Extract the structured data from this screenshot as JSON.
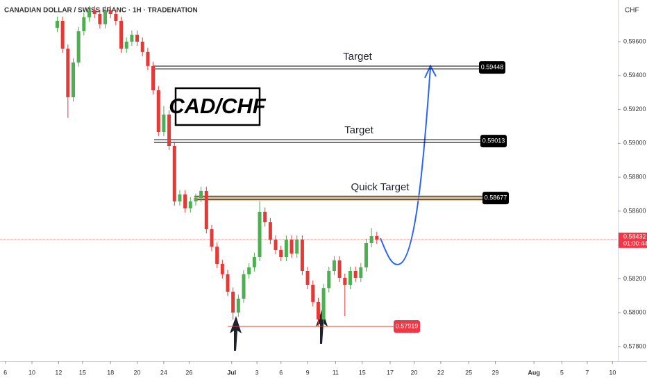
{
  "chart_data": {
    "type": "candlestick",
    "title": "CANADIAN DOLLAR / SWISS FRANC · 1H · TRADENATION",
    "currency": "CHF",
    "annotation": "CAD/CHF",
    "up_color": "#4caf50",
    "down_color": "#e53935",
    "x": [
      4.3,
      4.7,
      5.1,
      5.5,
      5.9,
      6.3,
      6.7,
      7.1,
      7.5,
      7.9,
      8.3,
      8.7,
      9.1,
      9.5,
      9.9,
      10.3,
      10.7,
      11.1,
      11.5,
      11.9,
      12.3,
      12.7,
      13.1,
      13.5,
      13.9,
      14.3,
      14.7,
      15.1,
      15.5,
      15.9,
      16.3,
      16.7,
      17.1,
      17.5,
      17.9,
      18.3,
      18.7,
      19.1,
      19.5,
      19.9,
      20.3,
      20.7,
      21.1,
      21.5,
      21.9,
      22.3,
      22.7,
      23.1,
      23.5,
      23.9,
      24.3,
      24.7,
      25.1,
      25.5,
      25.9,
      26.3,
      26.7,
      27.1,
      27.5,
      27.9,
      28.3
    ],
    "open": [
      0.59682,
      0.59723,
      0.59559,
      0.59272,
      0.59477,
      0.59662,
      0.59744,
      0.59785,
      0.59764,
      0.59703,
      0.59785,
      0.59764,
      0.59723,
      0.59559,
      0.596,
      0.59641,
      0.596,
      0.59539,
      0.59457,
      0.59313,
      0.59067,
      0.5917,
      0.58985,
      0.58657,
      0.58698,
      0.58616,
      0.58657,
      0.58678,
      0.58719,
      0.58493,
      0.5839,
      0.58288,
      0.58227,
      0.58124,
      0.58001,
      0.58083,
      0.58227,
      0.58268,
      0.58329,
      0.58596,
      0.58534,
      0.58431,
      0.5837,
      0.58329,
      0.58431,
      0.58349,
      0.58431,
      0.58247,
      0.58165,
      0.58063,
      0.5796,
      0.58145,
      0.58247,
      0.58309,
      0.58206,
      0.58165,
      0.58247,
      0.58206,
      0.58268,
      0.58411,
      0.58452
    ],
    "high": [
      0.59748,
      0.59748,
      0.59584,
      0.59502,
      0.59687,
      0.59769,
      0.5981,
      0.5981,
      0.59789,
      0.5981,
      0.5981,
      0.59789,
      0.59748,
      0.59625,
      0.59666,
      0.59666,
      0.59625,
      0.59564,
      0.59482,
      0.59338,
      0.5922,
      0.59195,
      0.5901,
      0.58723,
      0.58723,
      0.58682,
      0.58703,
      0.58744,
      0.58744,
      0.58518,
      0.58415,
      0.58313,
      0.58252,
      0.58149,
      0.58108,
      0.58252,
      0.58293,
      0.58354,
      0.5866,
      0.58621,
      0.58559,
      0.58456,
      0.58395,
      0.58456,
      0.58456,
      0.58456,
      0.58456,
      0.58272,
      0.5819,
      0.58088,
      0.5817,
      0.58272,
      0.58334,
      0.58334,
      0.58231,
      0.58272,
      0.58272,
      0.58293,
      0.58436,
      0.585,
      0.58477
    ],
    "low": [
      0.59657,
      0.59534,
      0.5915,
      0.59247,
      0.59452,
      0.59637,
      0.59719,
      0.59739,
      0.59678,
      0.59678,
      0.59739,
      0.59698,
      0.59534,
      0.59534,
      0.59575,
      0.59575,
      0.59514,
      0.59432,
      0.59288,
      0.59042,
      0.59042,
      0.5896,
      0.58632,
      0.58632,
      0.58591,
      0.58591,
      0.58632,
      0.58653,
      0.58468,
      0.58365,
      0.58263,
      0.58202,
      0.58099,
      0.5796,
      0.57976,
      0.58058,
      0.58202,
      0.58243,
      0.58304,
      0.58509,
      0.58406,
      0.58345,
      0.58304,
      0.58304,
      0.58324,
      0.58324,
      0.58222,
      0.5814,
      0.58038,
      0.57919,
      0.57935,
      0.5812,
      0.58222,
      0.58181,
      0.5798,
      0.5814,
      0.58181,
      0.58181,
      0.58243,
      0.58386,
      0.58407
    ],
    "close": [
      0.59723,
      0.59559,
      0.59272,
      0.59477,
      0.59662,
      0.59744,
      0.59785,
      0.59764,
      0.59703,
      0.59785,
      0.59764,
      0.59723,
      0.59559,
      0.596,
      0.59641,
      0.596,
      0.59539,
      0.59457,
      0.59313,
      0.59067,
      0.5917,
      0.58985,
      0.58657,
      0.58698,
      0.58616,
      0.58657,
      0.58678,
      0.58719,
      0.58493,
      0.5839,
      0.58288,
      0.58227,
      0.58124,
      0.58001,
      0.58083,
      0.58227,
      0.58268,
      0.58329,
      0.58596,
      0.58534,
      0.58431,
      0.5837,
      0.58329,
      0.58431,
      0.58349,
      0.58431,
      0.58247,
      0.58165,
      0.58063,
      0.5796,
      0.58145,
      0.58247,
      0.58309,
      0.58206,
      0.58165,
      0.58247,
      0.58206,
      0.58268,
      0.58411,
      0.58452,
      0.58432
    ],
    "levels": [
      {
        "label": "Target",
        "value": 0.59448
      },
      {
        "label": "Target",
        "value": 0.59013
      },
      {
        "label": "Quick Target",
        "value": 0.58677
      }
    ],
    "support": 0.57919,
    "last_price": 0.58432,
    "countdown": "01:00:44",
    "xlim": [
      0,
      46.4
    ],
    "ylim": [
      0.57714,
      0.59846
    ],
    "xticks": [
      {
        "value": 0.4,
        "label": "6"
      },
      {
        "value": 2.4,
        "label": "10"
      },
      {
        "value": 4.4,
        "label": "12"
      },
      {
        "value": 6.2,
        "label": "15"
      },
      {
        "value": 8.3,
        "label": "18"
      },
      {
        "value": 10.3,
        "label": "20"
      },
      {
        "value": 12.3,
        "label": "24"
      },
      {
        "value": 14.2,
        "label": "26"
      },
      {
        "value": 17.4,
        "label": "Jul"
      },
      {
        "value": 19.3,
        "label": "3"
      },
      {
        "value": 21.1,
        "label": "6"
      },
      {
        "value": 23.1,
        "label": "9"
      },
      {
        "value": 25.2,
        "label": "11"
      },
      {
        "value": 27.2,
        "label": "15"
      },
      {
        "value": 29.3,
        "label": "17"
      },
      {
        "value": 31.1,
        "label": "20"
      },
      {
        "value": 33.1,
        "label": "22"
      },
      {
        "value": 35.2,
        "label": "25"
      },
      {
        "value": 37.2,
        "label": "29"
      },
      {
        "value": 40.1,
        "label": "Aug"
      },
      {
        "value": 42.2,
        "label": "5"
      },
      {
        "value": 44.1,
        "label": "7"
      },
      {
        "value": 46.0,
        "label": "10"
      }
    ],
    "yticks": [
      {
        "value": 0.578,
        "label": "0.57800"
      },
      {
        "value": 0.58,
        "label": "0.58000"
      },
      {
        "value": 0.582,
        "label": "0.58200"
      },
      {
        "value": 0.584,
        "label": "0.58400"
      },
      {
        "value": 0.586,
        "label": "0.58600"
      },
      {
        "value": 0.588,
        "label": "0.58800"
      },
      {
        "value": 0.59,
        "label": "0.59000"
      },
      {
        "value": 0.592,
        "label": "0.59200"
      },
      {
        "value": 0.594,
        "label": "0.59400"
      },
      {
        "value": 0.596,
        "label": "0.59600"
      }
    ]
  }
}
